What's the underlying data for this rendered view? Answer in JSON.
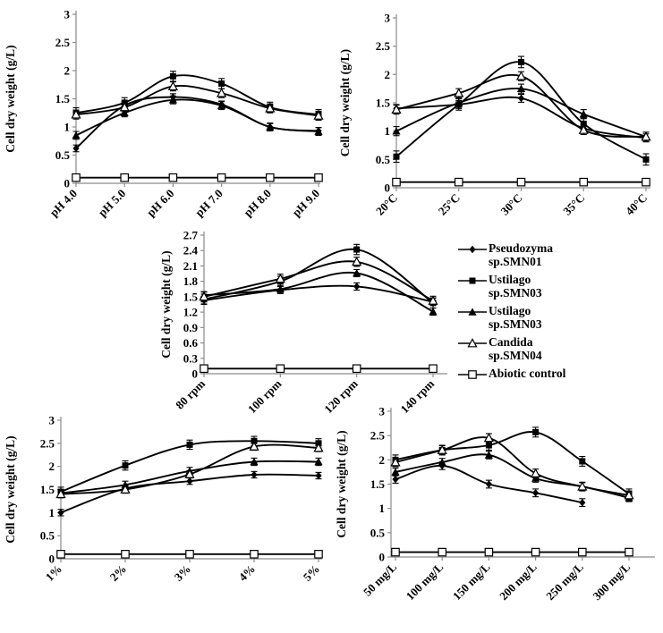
{
  "figure": {
    "title": "",
    "background": "#ffffff",
    "line_color": "#000000",
    "axis_color": "#8c8c8c"
  },
  "legend": {
    "position": "right-middle",
    "items": [
      {
        "id": "pseudozyma-smn01",
        "marker": "diamond-filled",
        "lines": [
          "Pseudozyma",
          "sp.SMN01"
        ]
      },
      {
        "id": "ustilago-smn03-square",
        "marker": "square-filled",
        "lines": [
          "Ustilago",
          "sp.SMN03"
        ]
      },
      {
        "id": "ustilago-smn03-triangle",
        "marker": "triangle-filled",
        "lines": [
          "Ustilago",
          "sp.SMN03"
        ]
      },
      {
        "id": "candida-smn04",
        "marker": "triangle-open",
        "lines": [
          "Candida",
          "sp.SMN04"
        ]
      },
      {
        "id": "abiotic-control",
        "marker": "square-open",
        "lines": [
          "Abiotic control"
        ]
      }
    ]
  },
  "chart_data": [
    {
      "id": "ph",
      "type": "line",
      "title": "",
      "xlabel": "",
      "ylabel": "Cell dry weight (g/L)",
      "ylim": [
        0,
        3
      ],
      "yticks": [
        0,
        0.5,
        1,
        1.5,
        2,
        2.5,
        3
      ],
      "ytick_labels": [
        "0",
        "0.5",
        "1",
        "1.5",
        "2",
        "2.5",
        "3"
      ],
      "grid": false,
      "categories": [
        "pH 4.0",
        "pH 5.0",
        "pH 6.0",
        "pH 7.0",
        "pH 8.0",
        "pH 9.0"
      ],
      "series": [
        {
          "name": "Pseudozyma sp.SMN01",
          "marker": "diamond-filled",
          "err": 0.06,
          "values": [
            0.62,
            1.38,
            1.53,
            1.4,
            1.0,
            0.93
          ]
        },
        {
          "name": "Ustilago sp.SMN03",
          "marker": "square-filled",
          "err": 0.09,
          "values": [
            1.25,
            1.43,
            1.9,
            1.77,
            1.35,
            1.22
          ]
        },
        {
          "name": "Ustilago sp.SMN03",
          "marker": "triangle-filled",
          "err": 0.07,
          "values": [
            0.85,
            1.25,
            1.48,
            1.38,
            1.0,
            0.92
          ]
        },
        {
          "name": "Candida sp.SMN04",
          "marker": "triangle-open",
          "err": 0.08,
          "values": [
            1.22,
            1.35,
            1.72,
            1.6,
            1.33,
            1.2
          ]
        },
        {
          "name": "Abiotic control",
          "marker": "square-open",
          "err": 0,
          "values": [
            0.1,
            0.1,
            0.1,
            0.1,
            0.1,
            0.1
          ]
        }
      ]
    },
    {
      "id": "temperature",
      "type": "line",
      "title": "",
      "xlabel": "",
      "ylabel": "Cell dry weight (g/L)",
      "ylim": [
        0,
        3
      ],
      "yticks": [
        0,
        0.5,
        1,
        1.5,
        2,
        2.5,
        3
      ],
      "ytick_labels": [
        "0",
        "0.5",
        "1",
        "1.5",
        "2",
        "2.5",
        "3"
      ],
      "grid": false,
      "categories": [
        "20°C",
        "25°C",
        "30°C",
        "35°C",
        "40°C"
      ],
      "series": [
        {
          "name": "Pseudozyma sp.SMN01",
          "marker": "diamond-filled",
          "err": 0.07,
          "values": [
            1.4,
            1.47,
            1.58,
            1.05,
            0.88
          ]
        },
        {
          "name": "Ustilago sp.SMN03",
          "marker": "square-filled",
          "err": 0.1,
          "values": [
            0.55,
            1.47,
            2.22,
            1.13,
            0.5
          ]
        },
        {
          "name": "Ustilago sp.SMN03",
          "marker": "triangle-filled",
          "err": 0.08,
          "values": [
            1.0,
            1.5,
            1.75,
            1.3,
            0.9
          ]
        },
        {
          "name": "Candida sp.SMN04",
          "marker": "triangle-open",
          "err": 0.08,
          "values": [
            1.38,
            1.67,
            1.97,
            1.02,
            0.9
          ]
        },
        {
          "name": "Abiotic control",
          "marker": "square-open",
          "err": 0,
          "values": [
            0.1,
            0.1,
            0.1,
            0.1,
            0.1
          ]
        }
      ]
    },
    {
      "id": "agitation",
      "type": "line",
      "title": "",
      "xlabel": "",
      "ylabel": "Cell dry weight (g/L)",
      "ylim": [
        0,
        2.7
      ],
      "yticks": [
        0,
        0.3,
        0.6,
        0.9,
        1.2,
        1.5,
        1.8,
        2.1,
        2.4,
        2.7
      ],
      "ytick_labels": [
        "0",
        "0.3",
        "0.6",
        "0.9",
        "1.2",
        "1.5",
        "1.8",
        "2.1",
        "2.4",
        "2.7"
      ],
      "grid": false,
      "categories": [
        "80 rpm",
        "100 rpm",
        "120 rpm",
        "140 rpm"
      ],
      "series": [
        {
          "name": "Pseudozyma sp.SMN01",
          "marker": "diamond-filled",
          "err": 0.07,
          "values": [
            1.43,
            1.63,
            1.7,
            1.4
          ]
        },
        {
          "name": "Ustilago sp.SMN03",
          "marker": "square-filled",
          "err": 0.1,
          "values": [
            1.45,
            1.8,
            2.42,
            1.38
          ]
        },
        {
          "name": "Ustilago sp.SMN03",
          "marker": "triangle-filled",
          "err": 0.07,
          "values": [
            1.53,
            1.65,
            1.96,
            1.21
          ]
        },
        {
          "name": "Candida sp.SMN04",
          "marker": "triangle-open",
          "err": 0.09,
          "values": [
            1.5,
            1.85,
            2.18,
            1.42
          ]
        },
        {
          "name": "Abiotic control",
          "marker": "square-open",
          "err": 0,
          "values": [
            0.1,
            0.1,
            0.1,
            0.1
          ]
        }
      ]
    },
    {
      "id": "substrate",
      "type": "line",
      "title": "",
      "xlabel": "",
      "ylabel": "Cell dry weight (g/L)",
      "ylim": [
        0,
        3
      ],
      "yticks": [
        0,
        0.5,
        1,
        1.5,
        2,
        2.5,
        3
      ],
      "ytick_labels": [
        "0",
        "0.5",
        "1",
        "1.5",
        "2",
        "2.5",
        "3"
      ],
      "grid": false,
      "categories": [
        "1%",
        "2%",
        "3%",
        "4%",
        "5%"
      ],
      "series": [
        {
          "name": "Pseudozyma sp.SMN01",
          "marker": "diamond-filled",
          "err": 0.07,
          "values": [
            1.0,
            1.52,
            1.68,
            1.82,
            1.8
          ]
        },
        {
          "name": "Ustilago sp.SMN03",
          "marker": "square-filled",
          "err": 0.1,
          "values": [
            1.45,
            2.02,
            2.47,
            2.55,
            2.5
          ]
        },
        {
          "name": "Ustilago sp.SMN03",
          "marker": "triangle-filled",
          "err": 0.08,
          "values": [
            1.42,
            1.6,
            1.9,
            2.1,
            2.1
          ]
        },
        {
          "name": "Candida sp.SMN04",
          "marker": "triangle-open",
          "err": 0.08,
          "values": [
            1.4,
            1.5,
            1.83,
            2.43,
            2.4
          ]
        },
        {
          "name": "Abiotic control",
          "marker": "square-open",
          "err": 0,
          "values": [
            0.1,
            0.1,
            0.1,
            0.1,
            0.1
          ]
        }
      ]
    },
    {
      "id": "concentration",
      "type": "line",
      "title": "",
      "xlabel": "",
      "ylabel": "Cell dry weight (g/L)",
      "ylim": [
        0,
        3
      ],
      "yticks": [
        0,
        0.5,
        1,
        1.5,
        2,
        2.5,
        3
      ],
      "ytick_labels": [
        "0",
        "0.5",
        "1",
        "1.5",
        "2",
        "2.5",
        "3"
      ],
      "grid": false,
      "categories": [
        "50 mg/L",
        "100 mg/L",
        "150 mg/L",
        "200 mg/L",
        "250 mg/L",
        "300 mg/L"
      ],
      "series": [
        {
          "name": "Pseudozyma sp.SMN01",
          "marker": "diamond-filled",
          "err": 0.08,
          "values": [
            1.6,
            1.88,
            1.5,
            1.32,
            1.12,
            null
          ]
        },
        {
          "name": "Ustilago sp.SMN03",
          "marker": "square-filled",
          "err": 0.1,
          "values": [
            2.0,
            2.2,
            2.3,
            2.57,
            1.97,
            1.3
          ]
        },
        {
          "name": "Ustilago sp.SMN03",
          "marker": "triangle-filled",
          "err": 0.08,
          "values": [
            1.75,
            1.95,
            2.1,
            1.62,
            1.45,
            1.22
          ]
        },
        {
          "name": "Candida sp.SMN04",
          "marker": "triangle-open",
          "err": 0.09,
          "values": [
            1.95,
            2.2,
            2.45,
            1.72,
            1.45,
            1.27
          ]
        },
        {
          "name": "Abiotic control",
          "marker": "square-open",
          "err": 0,
          "values": [
            0.1,
            0.1,
            0.1,
            0.1,
            0.1,
            0.1
          ]
        }
      ]
    }
  ]
}
